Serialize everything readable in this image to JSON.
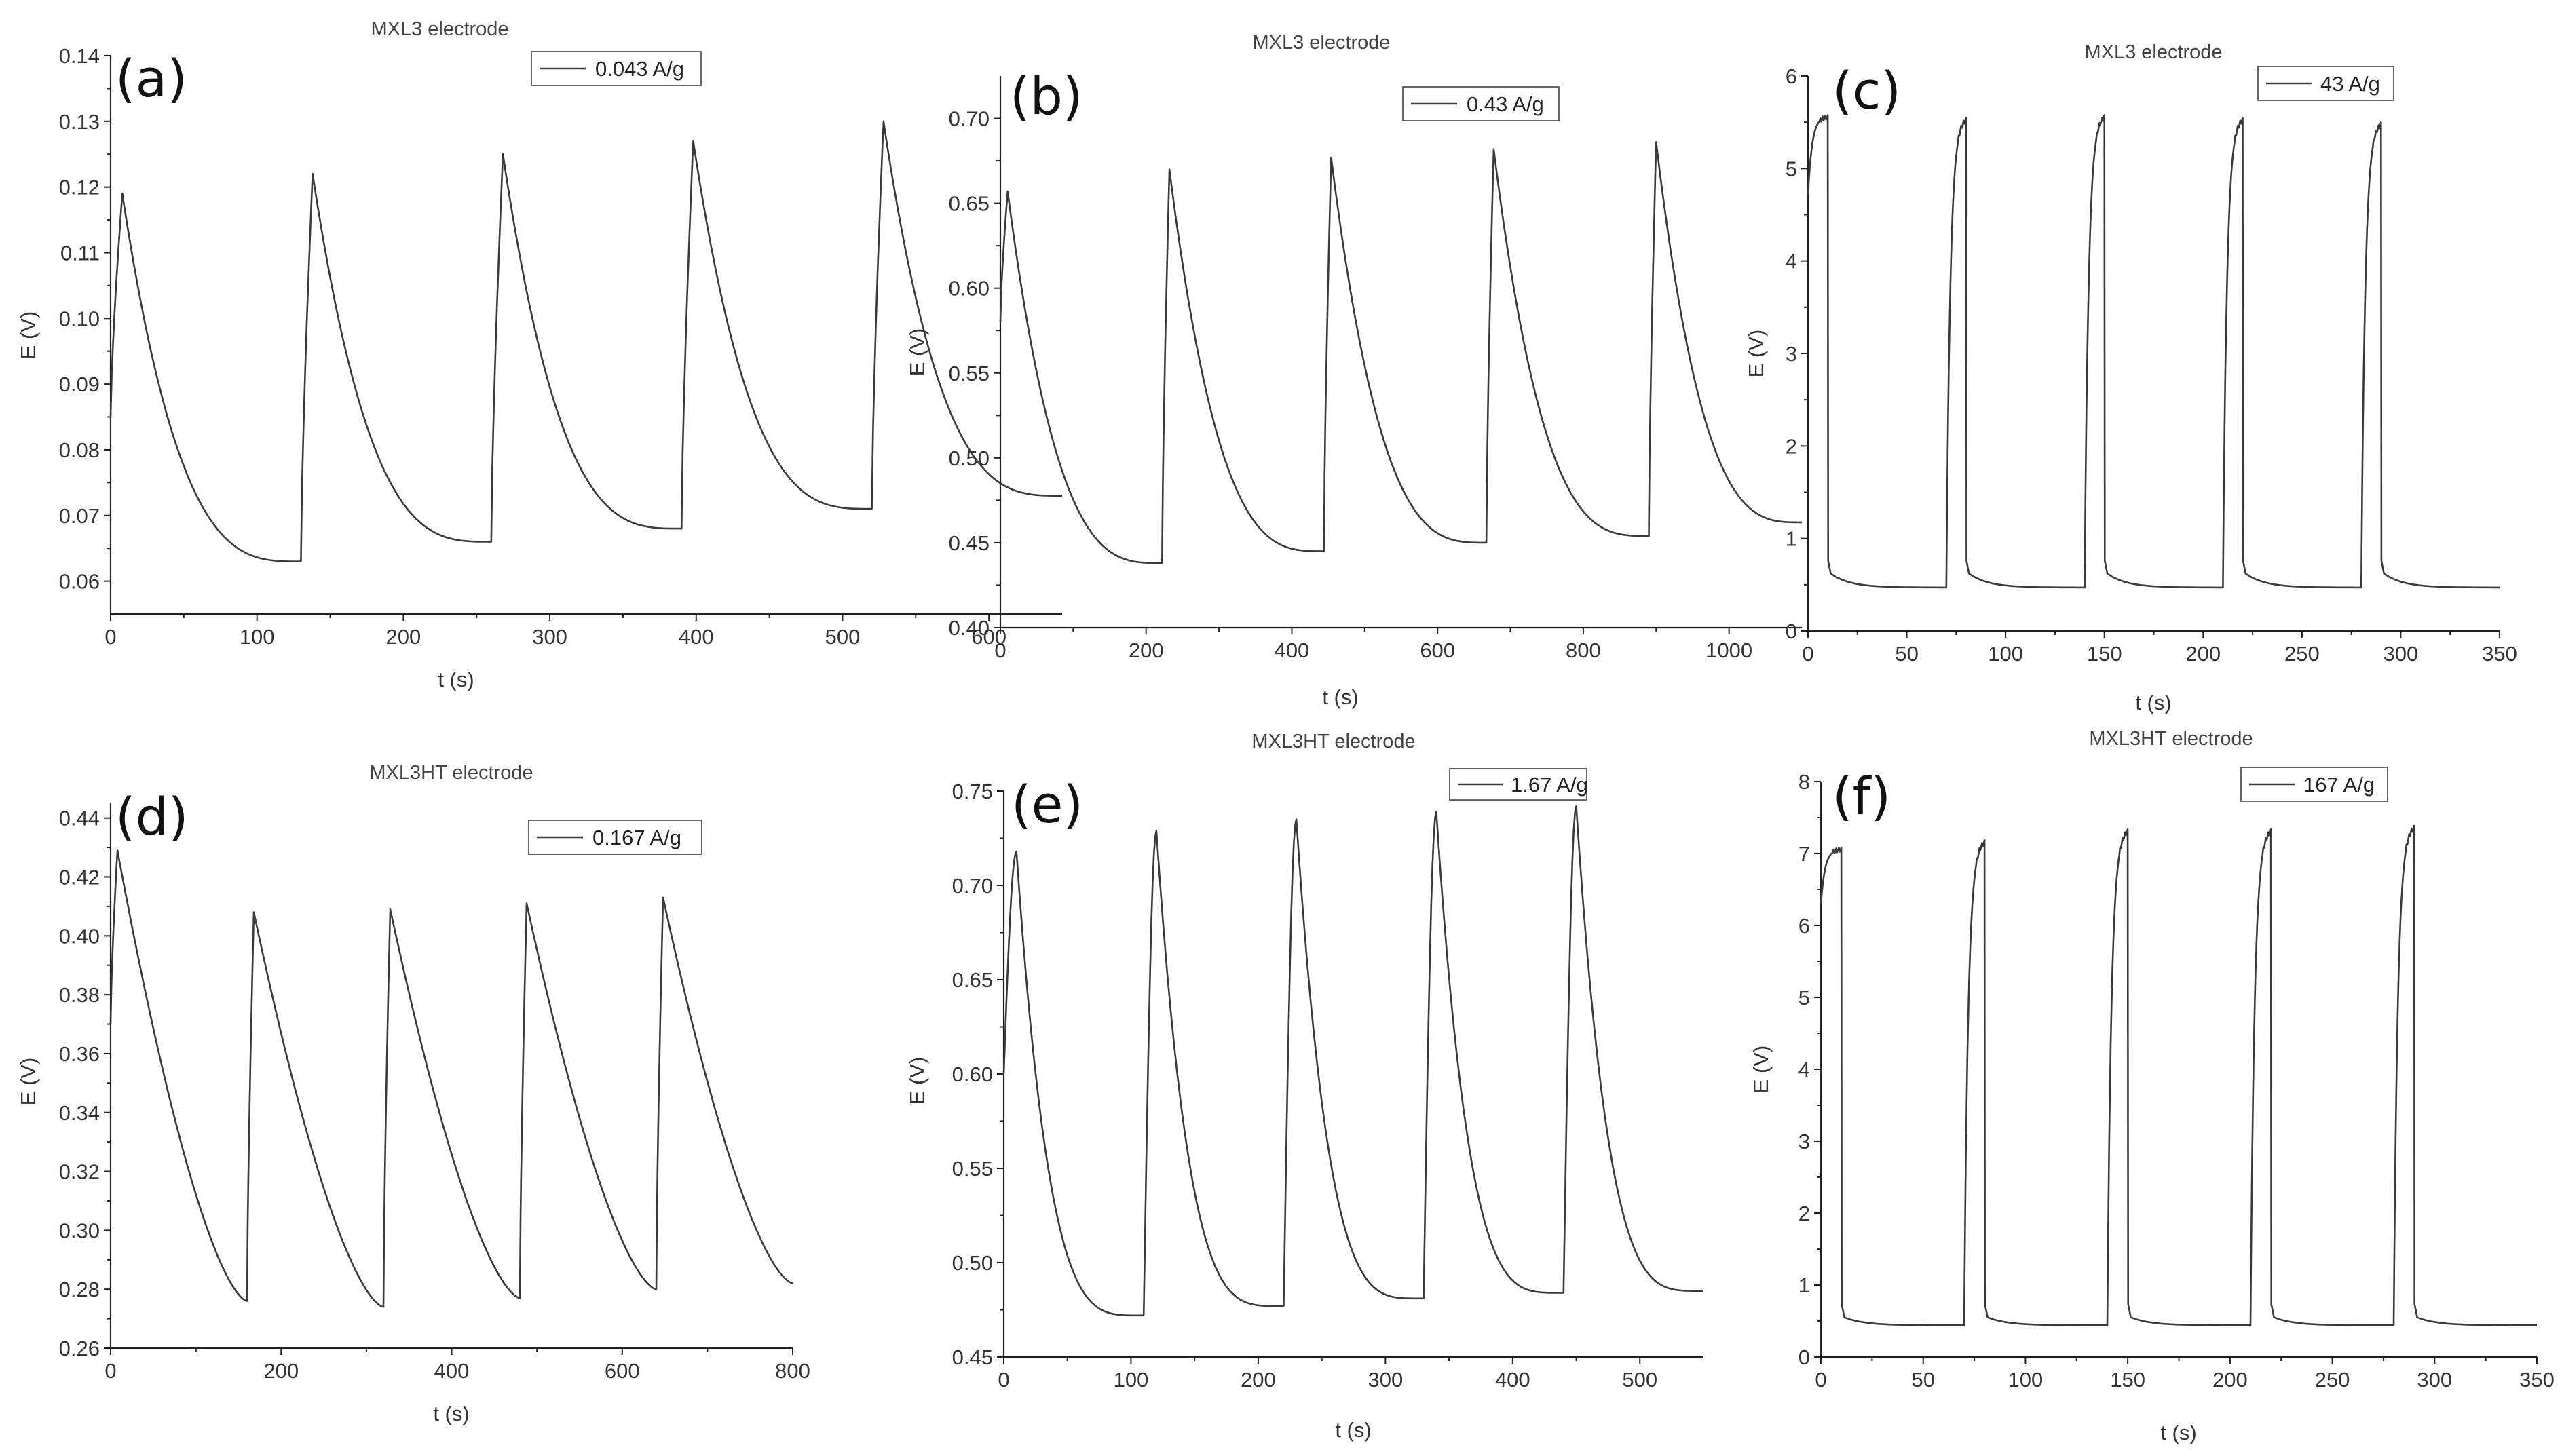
{
  "chart_data": [
    {
      "type": "line",
      "panel": "(a)",
      "title": "MXL3 electrode",
      "legend": "0.043 A/g",
      "legend_position": "top-right",
      "xlabel": "t (s)",
      "ylabel": "E (V)",
      "xlim": [
        0,
        650
      ],
      "ylim": [
        0.055,
        0.14
      ],
      "xticks": [
        0,
        100,
        200,
        300,
        400,
        500,
        600
      ],
      "xtick_labels": [
        "0",
        "100",
        "200",
        "300",
        "400",
        "500",
        "600"
      ],
      "yticks": [
        0.06,
        0.07,
        0.08,
        0.09,
        0.1,
        0.11,
        0.12,
        0.13,
        0.14
      ],
      "ytick_labels": [
        "0.06",
        "0.07",
        "0.08",
        "0.09",
        "0.10",
        "0.11",
        "0.12",
        "0.13",
        "0.14"
      ],
      "series": [
        {
          "name": "0.043 A/g",
          "shape": "sawtooth",
          "start_value": 0.085,
          "t_end": 650,
          "cycles": [
            {
              "t_start": 0,
              "t_peak": 8,
              "peak": 0.119,
              "t_end": 130,
              "end": 0.063
            },
            {
              "t_start": 130,
              "t_peak": 138,
              "peak": 0.122,
              "t_end": 260,
              "end": 0.066
            },
            {
              "t_start": 260,
              "t_peak": 268,
              "peak": 0.125,
              "t_end": 390,
              "end": 0.068
            },
            {
              "t_start": 390,
              "t_peak": 398,
              "peak": 0.127,
              "t_end": 520,
              "end": 0.071
            },
            {
              "t_start": 520,
              "t_peak": 528,
              "peak": 0.13,
              "t_end": 650,
              "end": 0.073
            }
          ]
        }
      ]
    },
    {
      "type": "line",
      "panel": "(b)",
      "title": "MXL3 electrode",
      "legend": "0.43 A/g",
      "legend_position": "top-right",
      "xlabel": "t (s)",
      "ylabel": "E (V)",
      "xlim": [
        0,
        1100
      ],
      "ylim": [
        0.4,
        0.725
      ],
      "xticks": [
        0,
        200,
        400,
        600,
        800,
        1000
      ],
      "xtick_labels": [
        "0",
        "200",
        "400",
        "600",
        "800",
        "1000"
      ],
      "yticks": [
        0.4,
        0.45,
        0.5,
        0.55,
        0.6,
        0.65,
        0.7
      ],
      "ytick_labels": [
        "0.40",
        "0.45",
        "0.50",
        "0.55",
        "0.60",
        "0.65",
        "0.70"
      ],
      "series": [
        {
          "name": "0.43 A/g",
          "shape": "sawtooth",
          "start_value": 0.58,
          "t_end": 1100,
          "cycles": [
            {
              "t_start": 0,
              "t_peak": 10,
              "peak": 0.657,
              "t_end": 222,
              "end": 0.438
            },
            {
              "t_start": 222,
              "t_peak": 232,
              "peak": 0.67,
              "t_end": 444,
              "end": 0.445
            },
            {
              "t_start": 444,
              "t_peak": 454,
              "peak": 0.677,
              "t_end": 667,
              "end": 0.45
            },
            {
              "t_start": 667,
              "t_peak": 677,
              "peak": 0.682,
              "t_end": 890,
              "end": 0.454
            },
            {
              "t_start": 890,
              "t_peak": 900,
              "peak": 0.686,
              "t_end": 1100,
              "end": 0.462
            }
          ]
        }
      ]
    },
    {
      "type": "line",
      "panel": "(c)",
      "title": "MXL3 electrode",
      "legend": "43 A/g",
      "legend_position": "top-right",
      "xlabel": "t (s)",
      "ylabel": "E (V)",
      "xlim": [
        0,
        350
      ],
      "ylim": [
        0,
        6
      ],
      "xticks": [
        0,
        50,
        100,
        150,
        200,
        250,
        300,
        350
      ],
      "xtick_labels": [
        "0",
        "50",
        "100",
        "150",
        "200",
        "250",
        "300",
        "350"
      ],
      "yticks": [
        0,
        1,
        2,
        3,
        4,
        5,
        6
      ],
      "ytick_labels": [
        "0",
        "1",
        "2",
        "3",
        "4",
        "5",
        "6"
      ],
      "series": [
        {
          "name": "43 A/g",
          "shape": "pulse",
          "start_value": 4.7,
          "t_end": 350,
          "base_end": 0.47,
          "cycles": [
            {
              "t_start": 0,
              "t_top_end": 10,
              "top": 5.55,
              "base": 0.62
            },
            {
              "t_start": 70,
              "t_top_end": 80,
              "top": 5.52,
              "base": 0.62
            },
            {
              "t_start": 140,
              "t_top_end": 150,
              "top": 5.55,
              "base": 0.62
            },
            {
              "t_start": 210,
              "t_top_end": 220,
              "top": 5.52,
              "base": 0.62
            },
            {
              "t_start": 280,
              "t_top_end": 290,
              "top": 5.47,
              "base": 0.62
            }
          ]
        }
      ]
    },
    {
      "type": "line",
      "panel": "(d)",
      "title": "MXL3HT electrode",
      "legend": "0.167  A/g",
      "legend_position": "top-right",
      "xlabel": "t (s)",
      "ylabel": "E (V)",
      "xlim": [
        0,
        800
      ],
      "ylim": [
        0.26,
        0.445
      ],
      "xticks": [
        0,
        200,
        400,
        600,
        800
      ],
      "xtick_labels": [
        "0",
        "200",
        "400",
        "600",
        "800"
      ],
      "yticks": [
        0.26,
        0.28,
        0.3,
        0.32,
        0.34,
        0.36,
        0.38,
        0.4,
        0.42,
        0.44
      ],
      "ytick_labels": [
        "0.26",
        "0.28",
        "0.30",
        "0.32",
        "0.34",
        "0.36",
        "0.38",
        "0.40",
        "0.42",
        "0.44"
      ],
      "series": [
        {
          "name": "0.167 A/g",
          "shape": "sawtooth_slow",
          "start_value": 0.37,
          "t_end": 800,
          "cycles": [
            {
              "t_start": 0,
              "t_peak": 8,
              "peak": 0.429,
              "t_end": 160,
              "end": 0.276
            },
            {
              "t_start": 160,
              "t_peak": 168,
              "peak": 0.408,
              "t_end": 320,
              "end": 0.274
            },
            {
              "t_start": 320,
              "t_peak": 328,
              "peak": 0.409,
              "t_end": 480,
              "end": 0.277
            },
            {
              "t_start": 480,
              "t_peak": 488,
              "peak": 0.411,
              "t_end": 640,
              "end": 0.28
            },
            {
              "t_start": 640,
              "t_peak": 648,
              "peak": 0.413,
              "t_end": 800,
              "end": 0.282
            }
          ]
        }
      ]
    },
    {
      "type": "line",
      "panel": "(e)",
      "title": "MXL3HT electrode",
      "legend": "1.67 A/g",
      "legend_position": "top-right",
      "xlabel": "t (s)",
      "ylabel": "E (V)",
      "xlim": [
        0,
        550
      ],
      "ylim": [
        0.45,
        0.75
      ],
      "xticks": [
        0,
        100,
        200,
        300,
        400,
        500
      ],
      "xtick_labels": [
        "0",
        "100",
        "200",
        "300",
        "400",
        "500"
      ],
      "yticks": [
        0.45,
        0.5,
        0.55,
        0.6,
        0.65,
        0.7,
        0.75
      ],
      "ytick_labels": [
        "0.45",
        "0.50",
        "0.55",
        "0.60",
        "0.65",
        "0.70",
        "0.75"
      ],
      "series": [
        {
          "name": "1.67 A/g",
          "shape": "rounded_sawtooth",
          "start_value": 0.6,
          "t_end": 550,
          "cycles": [
            {
              "t_start": 0,
              "t_peak": 10,
              "peak": 0.718,
              "t_end": 110,
              "end": 0.472
            },
            {
              "t_start": 110,
              "t_peak": 120,
              "peak": 0.729,
              "t_end": 220,
              "end": 0.477
            },
            {
              "t_start": 220,
              "t_peak": 230,
              "peak": 0.735,
              "t_end": 330,
              "end": 0.481
            },
            {
              "t_start": 330,
              "t_peak": 340,
              "peak": 0.739,
              "t_end": 440,
              "end": 0.484
            },
            {
              "t_start": 440,
              "t_peak": 450,
              "peak": 0.742,
              "t_end": 550,
              "end": 0.485
            }
          ]
        }
      ]
    },
    {
      "type": "line",
      "panel": "(f)",
      "title": "MXL3HT electrode",
      "legend": "167 A/g",
      "legend_position": "top-right",
      "xlabel": "t (s)",
      "ylabel": "E (V)",
      "xlim": [
        0,
        350
      ],
      "ylim": [
        0,
        8
      ],
      "xticks": [
        0,
        50,
        100,
        150,
        200,
        250,
        300,
        350
      ],
      "xtick_labels": [
        "0",
        "50",
        "100",
        "150",
        "200",
        "250",
        "300",
        "350"
      ],
      "yticks": [
        0,
        1,
        2,
        3,
        4,
        5,
        6,
        7,
        8
      ],
      "ytick_labels": [
        "0",
        "1",
        "2",
        "3",
        "4",
        "5",
        "6",
        "7",
        "8"
      ],
      "series": [
        {
          "name": "167 A/g",
          "shape": "pulse",
          "start_value": 6.3,
          "t_end": 350,
          "base_end": 0.44,
          "cycles": [
            {
              "t_start": 0,
              "t_top_end": 10,
              "top": 7.05,
              "base": 0.55
            },
            {
              "t_start": 70,
              "t_top_end": 80,
              "top": 7.15,
              "base": 0.55
            },
            {
              "t_start": 140,
              "t_top_end": 150,
              "top": 7.3,
              "base": 0.55
            },
            {
              "t_start": 210,
              "t_top_end": 220,
              "top": 7.3,
              "base": 0.55
            },
            {
              "t_start": 280,
              "t_top_end": 290,
              "top": 7.35,
              "base": 0.55
            }
          ]
        }
      ]
    }
  ]
}
